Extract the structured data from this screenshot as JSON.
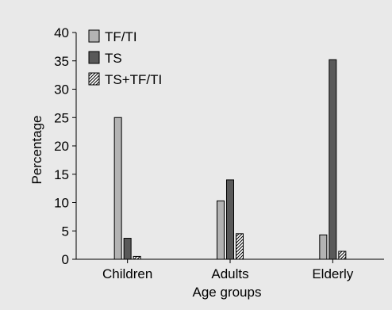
{
  "chart_data": {
    "type": "bar",
    "categories": [
      "Children",
      "Adults",
      "Elderly"
    ],
    "series": [
      {
        "name": "TF/TI",
        "values": [
          25,
          10.3,
          4.3
        ],
        "color": "#b3b3b3",
        "pattern": "solid"
      },
      {
        "name": "TS",
        "values": [
          3.7,
          14,
          35.2
        ],
        "color": "#595959",
        "pattern": "solid"
      },
      {
        "name": "TS+TF/TI",
        "values": [
          0.5,
          4.5,
          1.4
        ],
        "color": "#ffffff",
        "pattern": "diagonal-hatch"
      }
    ],
    "xlabel": "Age groups",
    "ylabel": "Percentage",
    "ylim": [
      0,
      40
    ],
    "yticks": [
      0,
      5,
      10,
      15,
      20,
      25,
      30,
      35,
      40
    ],
    "legend_position": "top-left",
    "grid": false
  }
}
